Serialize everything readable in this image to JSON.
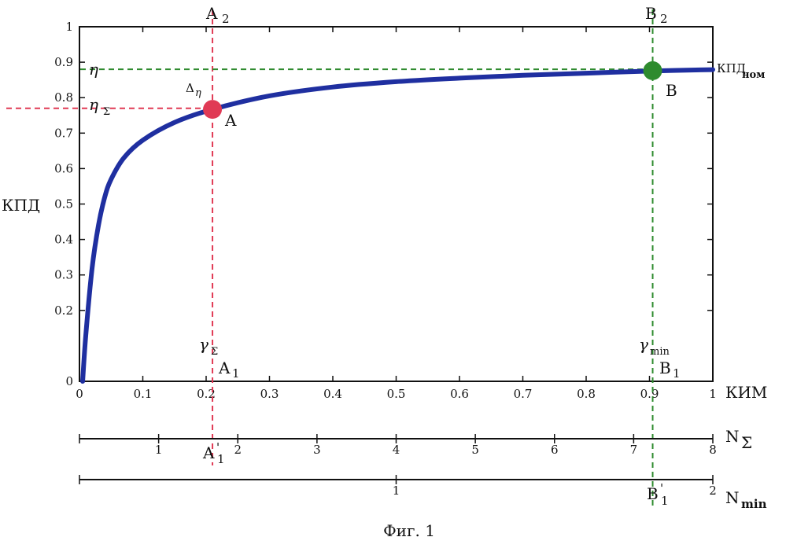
{
  "chart_data": {
    "type": "line",
    "title": "",
    "ylabel": "КПД",
    "xlabel": "КИМ",
    "xlim": [
      0,
      1
    ],
    "ylim": [
      0,
      1
    ],
    "x_ticks": [
      0,
      0.1,
      0.2,
      0.3,
      0.4,
      0.5,
      0.6,
      0.7,
      0.8,
      0.9,
      1
    ],
    "x_tick_labels": [
      "0",
      "0.1",
      "0.2",
      "0.3",
      "0.4",
      "0.5",
      "0.6",
      "0.7",
      "0.8",
      "0.9",
      "1"
    ],
    "y_ticks": [
      0,
      0.2,
      0.3,
      0.4,
      0.5,
      0.6,
      0.7,
      0.8,
      0.9,
      1
    ],
    "y_tick_labels": [
      "0",
      "0.2",
      "0.3",
      "0.4",
      "0.5",
      "0.6",
      "0.7",
      "0.8",
      "0.9",
      "1"
    ],
    "grid": false,
    "series": [
      {
        "color": "#1f2fa0",
        "x": [
          0.005,
          0.01,
          0.02,
          0.03,
          0.04,
          0.05,
          0.07,
          0.1,
          0.15,
          0.21,
          0.3,
          0.4,
          0.5,
          0.6,
          0.7,
          0.8,
          0.9,
          1.0
        ],
        "y": [
          0.0,
          0.13,
          0.32,
          0.44,
          0.52,
          0.57,
          0.63,
          0.68,
          0.73,
          0.767,
          0.805,
          0.83,
          0.845,
          0.855,
          0.863,
          0.869,
          0.875,
          0.879
        ]
      }
    ],
    "points": [
      {
        "label": "A",
        "x": 0.21,
        "y": 0.767,
        "color": "#e03a55"
      },
      {
        "label": "B",
        "x": 0.905,
        "y": 0.876,
        "color": "#2e8b2e"
      }
    ],
    "guides": {
      "red_vertical_x": 0.21,
      "green_vertical_x": 0.905,
      "red_horizontal_y": 0.77,
      "green_horizontal_y": 0.88
    },
    "annotations": {
      "A2_base": "A",
      "A2_sub": "2",
      "B2_base": "B",
      "B2_sub": "2",
      "eta": "η",
      "eta_sigma_base": "η",
      "eta_sigma_sub": "Σ",
      "delta_base": "Δ",
      "delta_sub": "η",
      "point_A": "A",
      "point_B": "B",
      "kpd_nom_base": "КПД",
      "kpd_nom_sub": "ном",
      "gamma_sigma_base": "γ",
      "gamma_sigma_sub": "Σ",
      "gamma_min_base": "γ",
      "gamma_min_sub": "min",
      "A1_base": "A",
      "A1_sub": "1",
      "B1_base": "B",
      "B1_sub": "1",
      "A1p_base": "A",
      "A1p_sub": "1",
      "A1p_prime": "'",
      "B1p_base": "B",
      "B1p_sub": "1",
      "B1p_prime": "'"
    },
    "secondary_axes": [
      {
        "label_base": "N",
        "label_sub": "Σ",
        "max": 8,
        "ticks": [
          1,
          2,
          3,
          4,
          5,
          6,
          7,
          8
        ],
        "tick_labels": [
          "1",
          "2",
          "3",
          "4",
          "5",
          "6",
          "7",
          "8"
        ]
      },
      {
        "label_base": "N",
        "label_sub": "min",
        "max": 2,
        "ticks": [
          1,
          2
        ],
        "tick_labels": [
          "1",
          "2"
        ]
      }
    ]
  },
  "caption": "Фиг. 1"
}
